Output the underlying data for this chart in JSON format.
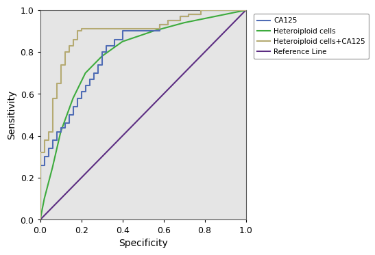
{
  "title": "",
  "xlabel": "Specificity",
  "ylabel": "Sensitivity",
  "xlim": [
    0.0,
    1.0
  ],
  "ylim": [
    0.0,
    1.0
  ],
  "xticks": [
    0.0,
    0.2,
    0.4,
    0.6,
    0.8,
    1.0
  ],
  "yticks": [
    0.0,
    0.2,
    0.4,
    0.6,
    0.8,
    1.0
  ],
  "background_color": "#e5e5e5",
  "fig_background": "#ffffff",
  "colors": {
    "CA125": "#4f6cb5",
    "Heteroiploid_cells": "#3dab3d",
    "Heteroiploid_cells_CA125": "#b5aa72",
    "Reference_Line": "#5c2d82"
  },
  "CA125_fpr": [
    0.0,
    0.0,
    0.02,
    0.02,
    0.04,
    0.04,
    0.06,
    0.06,
    0.08,
    0.08,
    0.1,
    0.1,
    0.12,
    0.12,
    0.14,
    0.14,
    0.16,
    0.16,
    0.18,
    0.18,
    0.2,
    0.2,
    0.22,
    0.22,
    0.24,
    0.24,
    0.26,
    0.26,
    0.28,
    0.28,
    0.3,
    0.3,
    0.32,
    0.32,
    0.36,
    0.36,
    0.4,
    0.4,
    0.58,
    0.58,
    0.62,
    0.62,
    0.68,
    0.68,
    0.72,
    0.72,
    0.78,
    0.78,
    1.0
  ],
  "CA125_tpr": [
    0.0,
    0.26,
    0.26,
    0.3,
    0.3,
    0.34,
    0.34,
    0.38,
    0.38,
    0.42,
    0.42,
    0.44,
    0.44,
    0.46,
    0.46,
    0.5,
    0.5,
    0.54,
    0.54,
    0.58,
    0.58,
    0.61,
    0.61,
    0.64,
    0.64,
    0.67,
    0.67,
    0.7,
    0.7,
    0.74,
    0.74,
    0.8,
    0.8,
    0.83,
    0.83,
    0.86,
    0.86,
    0.9,
    0.9,
    0.93,
    0.93,
    0.95,
    0.95,
    0.97,
    0.97,
    0.98,
    0.98,
    1.0,
    1.0
  ],
  "hetero_fpr": [
    0.0,
    0.02,
    0.06,
    0.1,
    0.16,
    0.22,
    0.3,
    0.4,
    0.55,
    0.7,
    0.85,
    1.0
  ],
  "hetero_tpr": [
    0.0,
    0.1,
    0.25,
    0.42,
    0.58,
    0.7,
    0.78,
    0.85,
    0.9,
    0.94,
    0.97,
    1.0
  ],
  "combo_fpr": [
    0.0,
    0.0,
    0.02,
    0.02,
    0.04,
    0.04,
    0.06,
    0.06,
    0.08,
    0.08,
    0.1,
    0.1,
    0.12,
    0.12,
    0.14,
    0.14,
    0.16,
    0.16,
    0.18,
    0.18,
    0.2,
    0.2,
    0.22,
    0.22,
    0.58,
    0.58,
    0.62,
    0.62,
    0.68,
    0.68,
    0.72,
    0.72,
    0.78,
    0.78,
    1.0
  ],
  "combo_tpr": [
    0.0,
    0.32,
    0.32,
    0.38,
    0.38,
    0.42,
    0.42,
    0.58,
    0.58,
    0.65,
    0.65,
    0.74,
    0.74,
    0.8,
    0.8,
    0.83,
    0.83,
    0.86,
    0.86,
    0.9,
    0.9,
    0.91,
    0.91,
    0.91,
    0.91,
    0.93,
    0.93,
    0.95,
    0.95,
    0.97,
    0.97,
    0.98,
    0.98,
    1.0,
    1.0
  ],
  "legend_labels": [
    "CA125",
    "Heteroiploid cells",
    "Heteroiploid cells+CA125",
    "Reference Line"
  ],
  "fontsize": 10,
  "tick_fontsize": 9,
  "linewidth": 1.5
}
